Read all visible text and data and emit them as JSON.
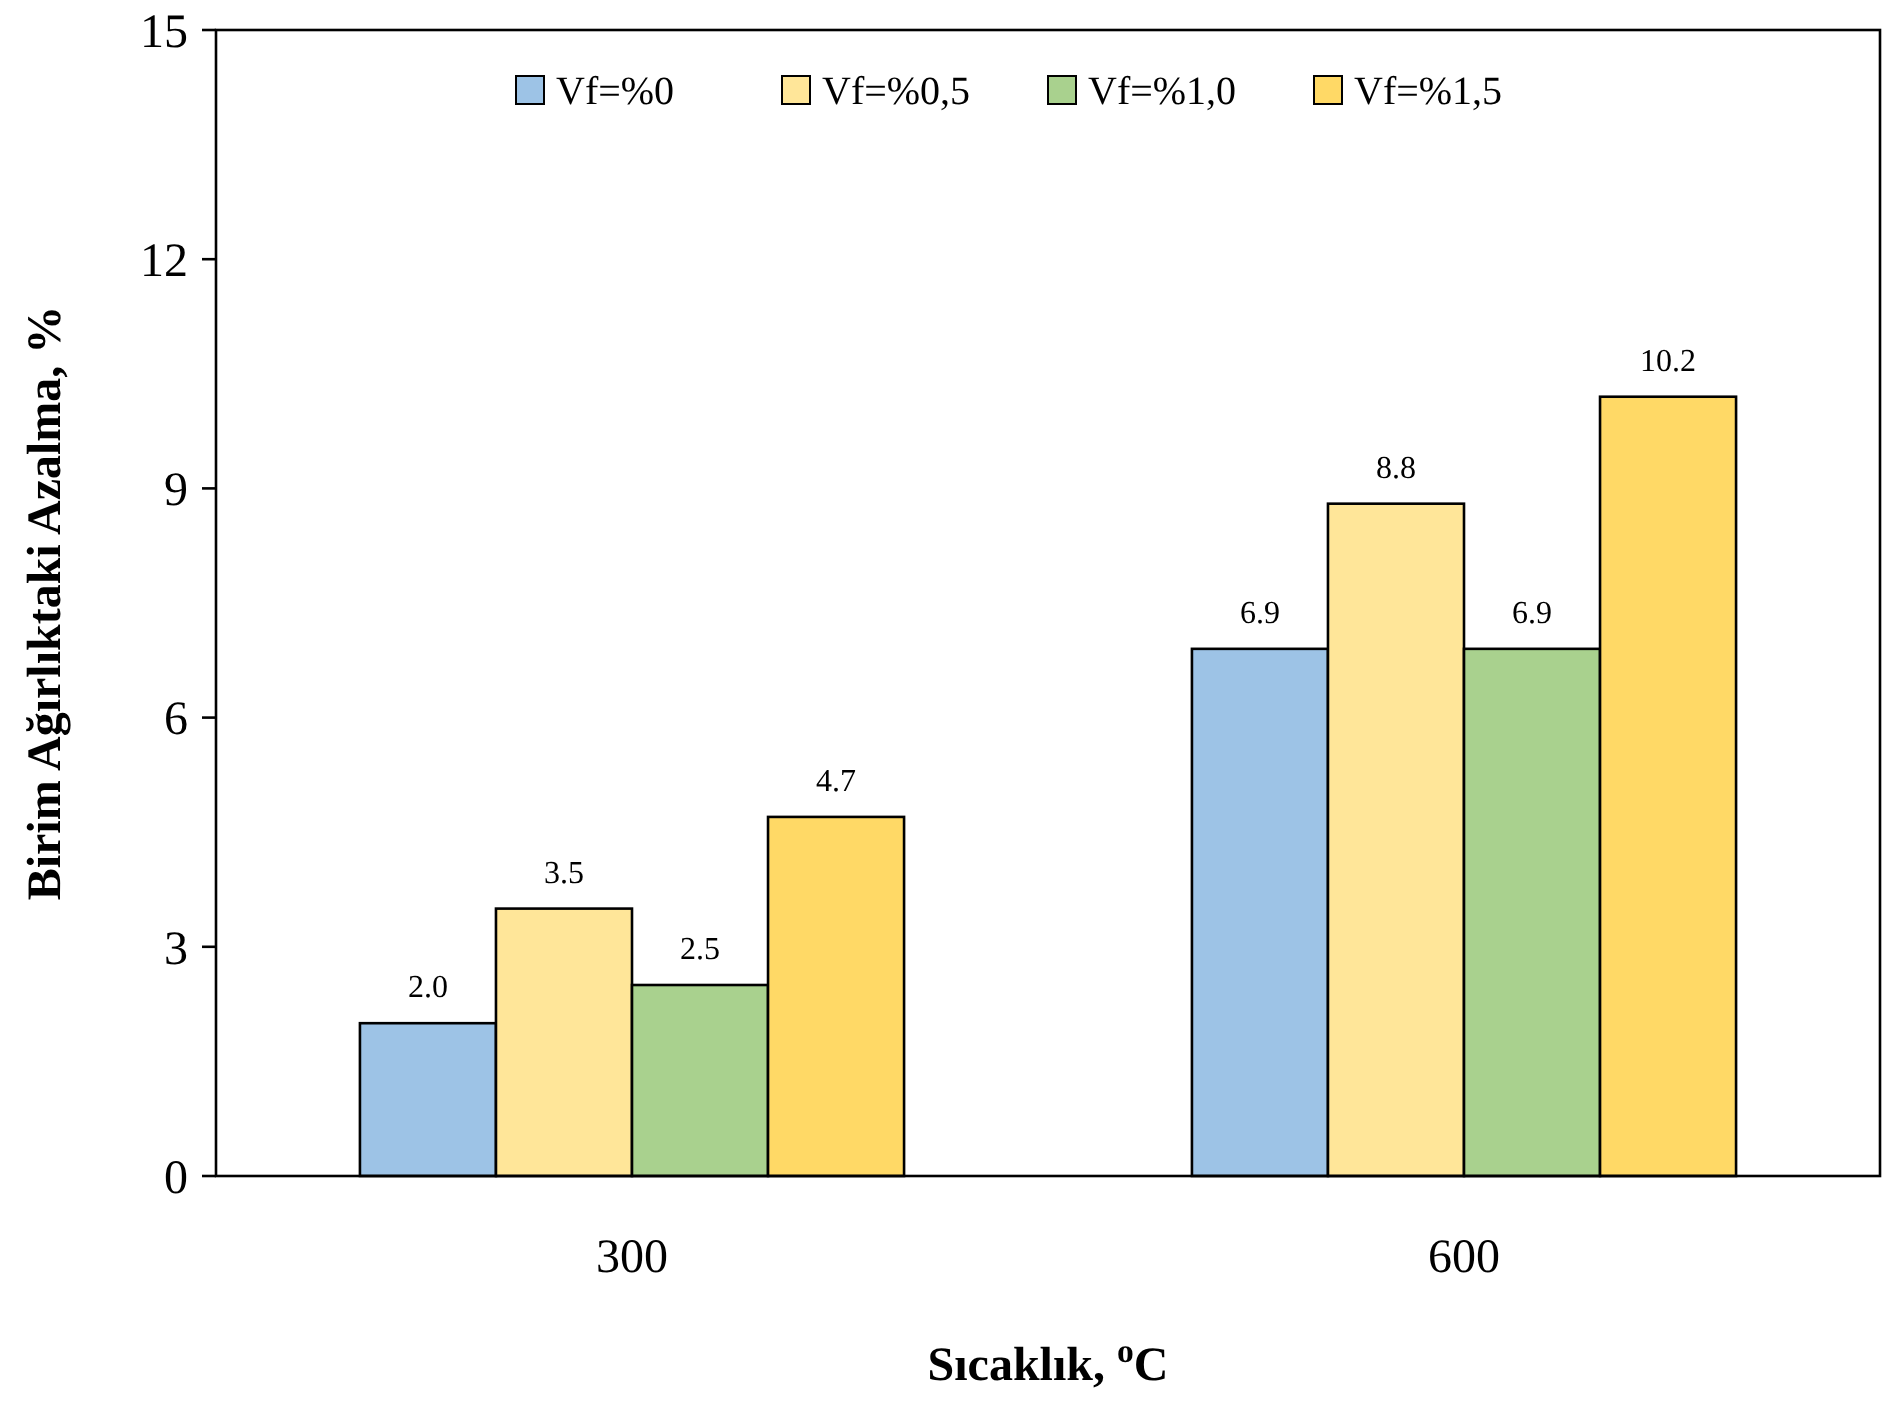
{
  "chart_data": {
    "type": "bar",
    "xlabel": "Sıcaklık, $^{o}$C",
    "ylabel": "Birim Ağırlıktaki Azalma, %",
    "categories": [
      "300",
      "600"
    ],
    "series": [
      {
        "name": "Vf=%0",
        "color": "#9dc3e6",
        "values": [
          2.0,
          6.9
        ],
        "value_labels": [
          "2.0",
          "6.9"
        ]
      },
      {
        "name": "Vf=%0,5",
        "color": "#ffe699",
        "values": [
          3.5,
          8.8
        ],
        "value_labels": [
          "3.5",
          "8.8"
        ]
      },
      {
        "name": "Vf=%1,0",
        "color": "#a9d18e",
        "values": [
          2.5,
          6.9
        ],
        "value_labels": [
          "2.5",
          "6.9"
        ]
      },
      {
        "name": "Vf=%1,5",
        "color": "#ffd966",
        "values": [
          4.7,
          10.2
        ],
        "value_labels": [
          "4.7",
          "10.2"
        ]
      }
    ],
    "ylim": [
      0,
      15
    ],
    "yticks": [
      0,
      3,
      6,
      9,
      12,
      15
    ],
    "grid": false,
    "legend": "top"
  }
}
